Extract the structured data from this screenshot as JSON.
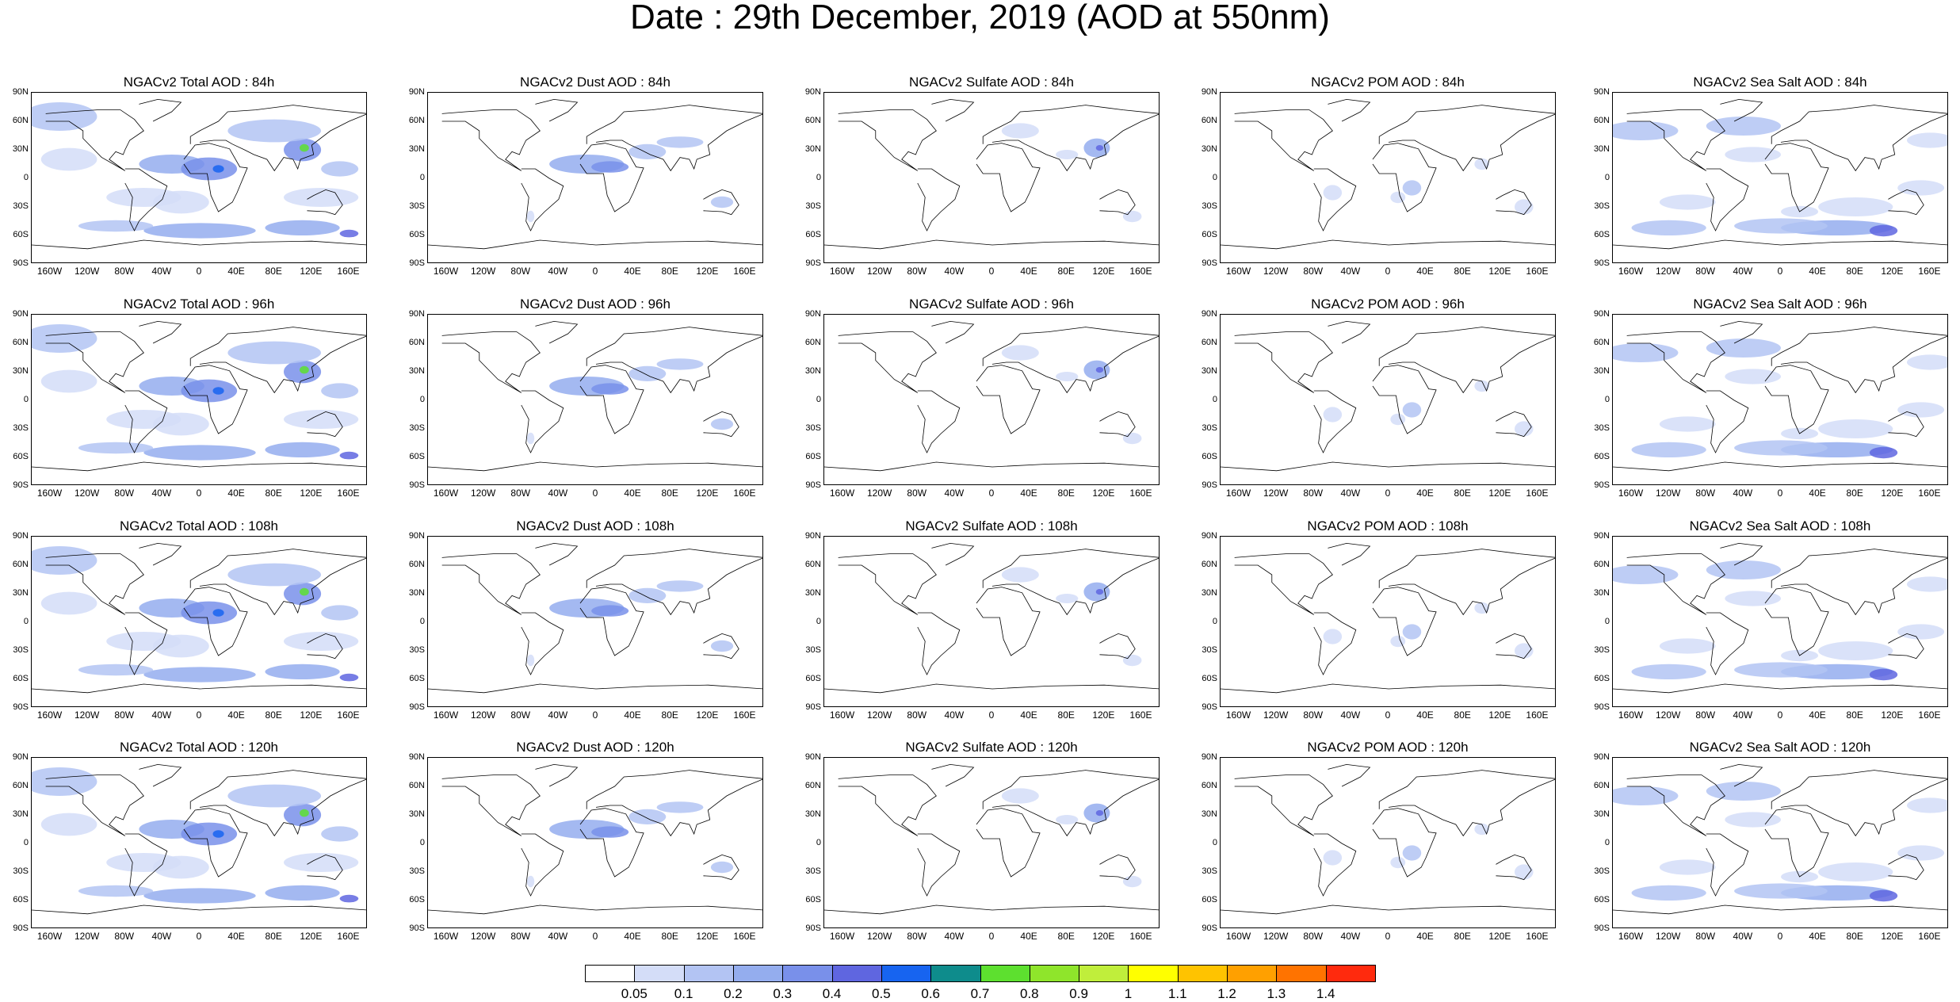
{
  "title": "Date : 29th December, 2019 (AOD at 550nm)",
  "lat_ticks": [
    "90N",
    "60N",
    "30N",
    "0",
    "30S",
    "60S",
    "90S"
  ],
  "lon_ticks": [
    "160W",
    "120W",
    "80W",
    "40W",
    "0",
    "40E",
    "80E",
    "120E",
    "160E"
  ],
  "panels": [
    [
      "NGACv2 Total AOD : 84h",
      "NGACv2 Dust AOD : 84h",
      "NGACv2 Sulfate AOD : 84h",
      "NGACv2 POM AOD : 84h",
      "NGACv2 Sea Salt AOD : 84h"
    ],
    [
      "NGACv2 Total AOD : 96h",
      "NGACv2 Dust AOD : 96h",
      "NGACv2 Sulfate AOD : 96h",
      "NGACv2 POM AOD : 96h",
      "NGACv2 Sea Salt AOD : 96h"
    ],
    [
      "NGACv2 Total AOD : 108h",
      "NGACv2 Dust AOD : 108h",
      "NGACv2 Sulfate AOD : 108h",
      "NGACv2 POM AOD : 108h",
      "NGACv2 Sea Salt AOD : 108h"
    ],
    [
      "NGACv2 Total AOD : 120h",
      "NGACv2 Dust AOD : 120h",
      "NGACv2 Sulfate AOD : 120h",
      "NGACv2 POM AOD : 120h",
      "NGACv2 Sea Salt  AOD : 120h"
    ]
  ],
  "colorbar": {
    "labels": [
      "0.05",
      "0.1",
      "0.2",
      "0.3",
      "0.4",
      "0.5",
      "0.6",
      "0.7",
      "0.8",
      "0.9",
      "1",
      "1.1",
      "1.2",
      "1.3",
      "1.4"
    ],
    "colors": [
      "#ffffff",
      "#d4ddf8",
      "#b3c4f3",
      "#94adee",
      "#7990ea",
      "#5f66e0",
      "#1764f0",
      "#0e8c8c",
      "#5de02f",
      "#8fe52b",
      "#c0ee3b",
      "#ffff00",
      "#ffc300",
      "#ffa000",
      "#ff7300",
      "#ff2a0d"
    ]
  }
}
